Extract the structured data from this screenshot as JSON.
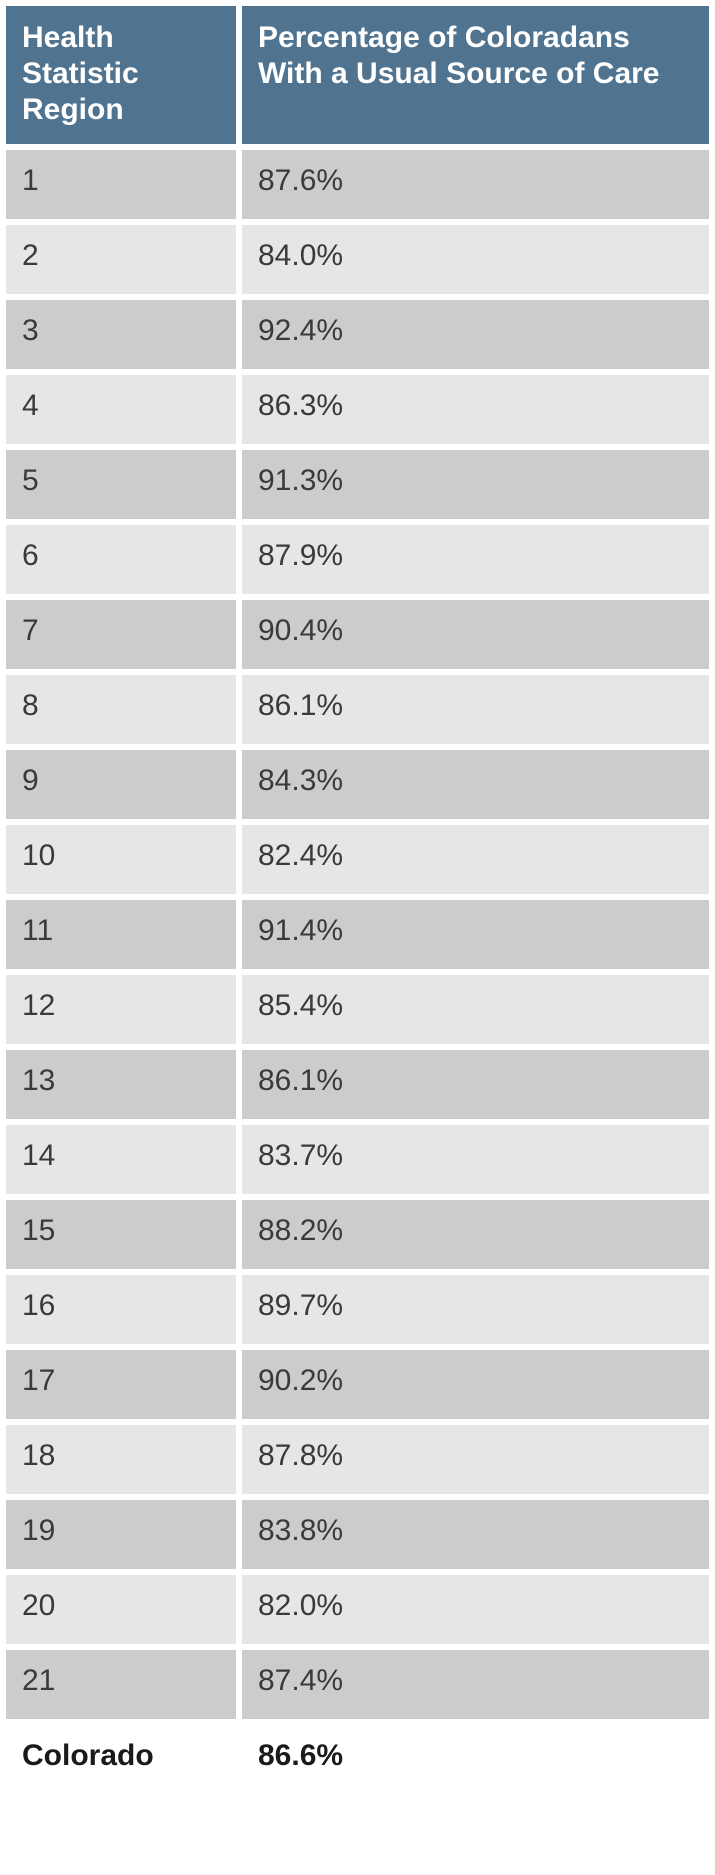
{
  "table": {
    "columns": [
      "Health Statistic Region",
      "Percentage of Coloradans With a Usual Source of Care"
    ],
    "header_bg": "#50738f",
    "header_text_color": "#ffffff",
    "row_bg_odd": "#cccccc",
    "row_bg_even": "#e6e6e6",
    "total_bg": "#ffffff",
    "font_size_header": 30,
    "font_size_cell": 30,
    "rows": [
      {
        "region": "1",
        "pct": "87.6%"
      },
      {
        "region": "2",
        "pct": "84.0%"
      },
      {
        "region": "3",
        "pct": "92.4%"
      },
      {
        "region": "4",
        "pct": "86.3%"
      },
      {
        "region": "5",
        "pct": "91.3%"
      },
      {
        "region": "6",
        "pct": "87.9%"
      },
      {
        "region": "7",
        "pct": "90.4%"
      },
      {
        "region": "8",
        "pct": "86.1%"
      },
      {
        "region": "9",
        "pct": "84.3%"
      },
      {
        "region": "10",
        "pct": "82.4%"
      },
      {
        "region": "11",
        "pct": "91.4%"
      },
      {
        "region": "12",
        "pct": "85.4%"
      },
      {
        "region": "13",
        "pct": "86.1%"
      },
      {
        "region": "14",
        "pct": "83.7%"
      },
      {
        "region": "15",
        "pct": "88.2%"
      },
      {
        "region": "16",
        "pct": "89.7%"
      },
      {
        "region": "17",
        "pct": "90.2%"
      },
      {
        "region": "18",
        "pct": "87.8%"
      },
      {
        "region": "19",
        "pct": "83.8%"
      },
      {
        "region": "20",
        "pct": "82.0%"
      },
      {
        "region": "21",
        "pct": "87.4%"
      }
    ],
    "total": {
      "region": "Colorado",
      "pct": "86.6%"
    }
  }
}
